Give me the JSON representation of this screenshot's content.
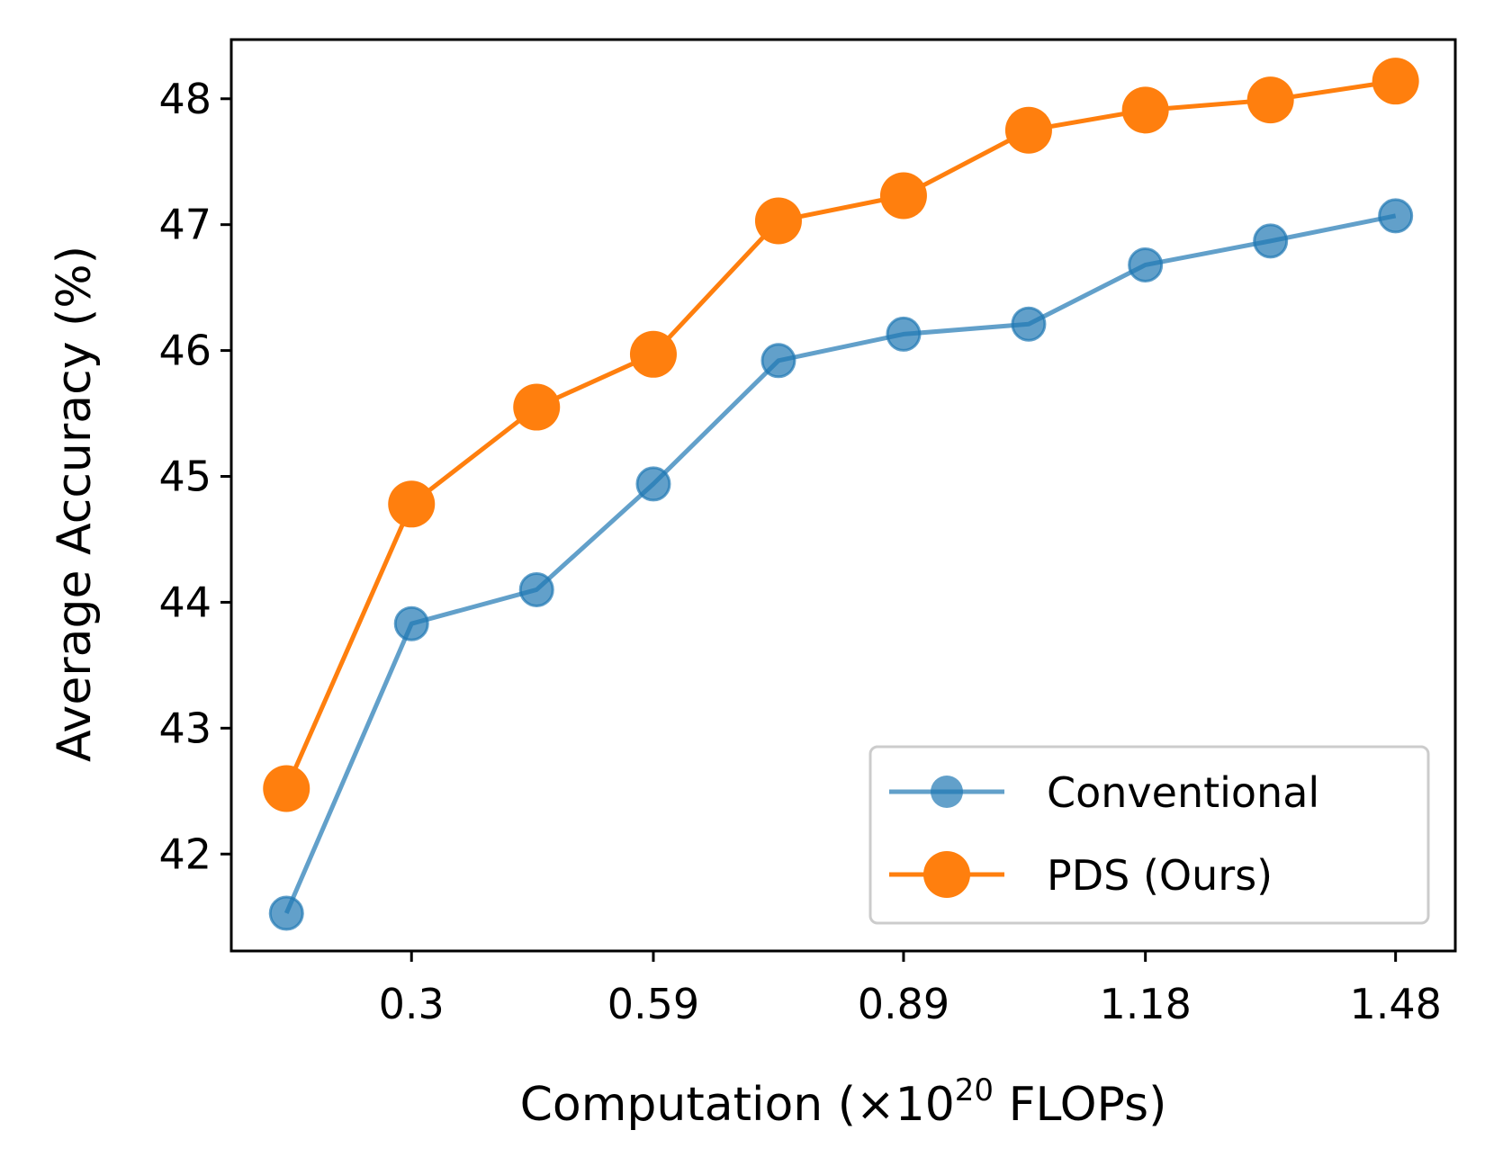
{
  "chart_data": {
    "type": "line",
    "title": "",
    "xlabel": "Computation (×10",
    "xlabel_superscript": "20",
    "xlabel_suffix": " FLOPs)",
    "ylabel": "Average Accuracy (%)",
    "x": [
      0.15,
      0.3,
      0.45,
      0.59,
      0.74,
      0.89,
      1.04,
      1.18,
      1.33,
      1.48
    ],
    "x_ticks": [
      0.3,
      0.59,
      0.89,
      1.18,
      1.48
    ],
    "x_tick_labels": [
      "0.3",
      "0.59",
      "0.89",
      "1.18",
      "1.48"
    ],
    "y_ticks": [
      42,
      43,
      44,
      45,
      46,
      47,
      48
    ],
    "y_tick_labels": [
      "42",
      "43",
      "44",
      "45",
      "46",
      "47",
      "48"
    ],
    "xlim": [
      0.0839,
      1.5516
    ],
    "ylim": [
      41.23,
      48.47
    ],
    "grid": false,
    "legend_position": "lower right",
    "series": [
      {
        "name": "Conventional",
        "color": "#1f77b4",
        "alpha": 0.7,
        "values": [
          41.53,
          43.83,
          44.1,
          44.94,
          45.92,
          46.13,
          46.21,
          46.68,
          46.87,
          47.07
        ]
      },
      {
        "name": "PDS (Ours)",
        "color": "#ff7f0e",
        "alpha": 1.0,
        "values": [
          42.52,
          44.78,
          45.55,
          45.97,
          47.03,
          47.23,
          47.75,
          47.91,
          47.99,
          48.14
        ]
      }
    ]
  }
}
